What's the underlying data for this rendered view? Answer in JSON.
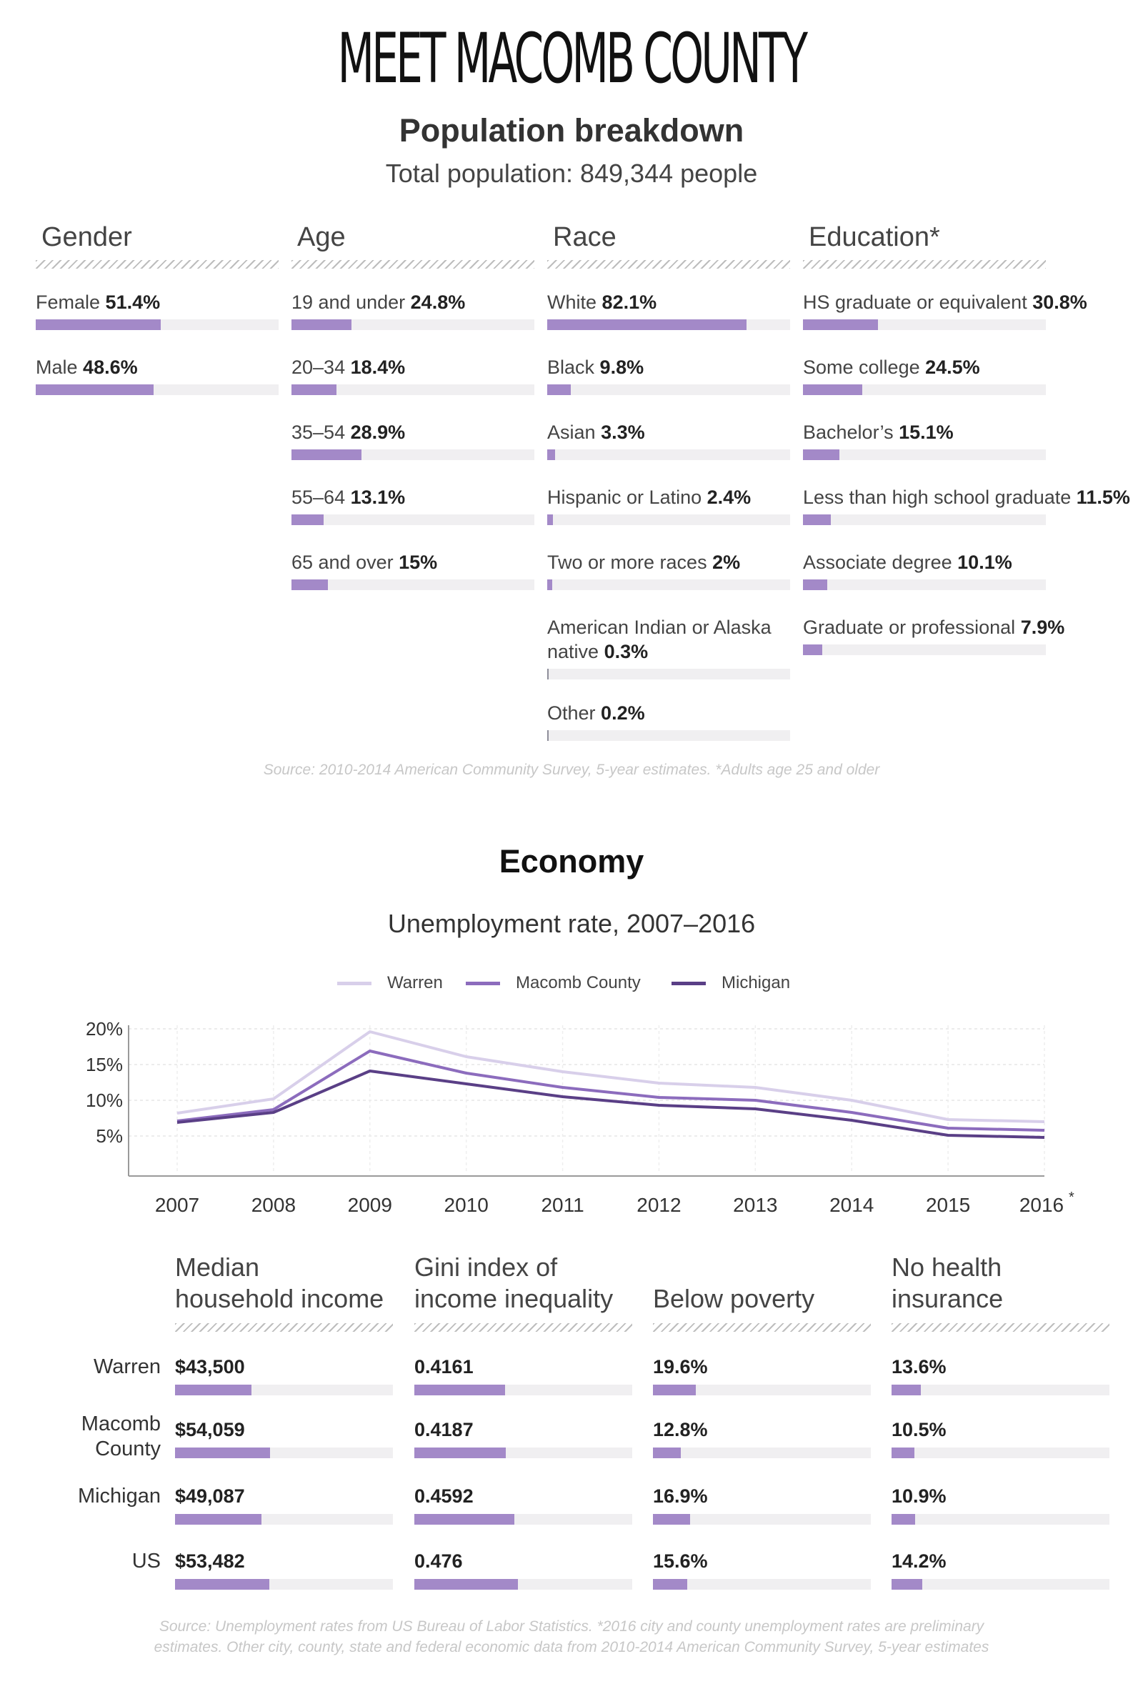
{
  "title": "MEET MACOMB COUNTY",
  "population": {
    "heading": "Population breakdown",
    "subheading": "Total population: 849,344 people",
    "columns": [
      {
        "header": "Gender",
        "items": [
          {
            "label": "Female",
            "value": "51.4%",
            "pct": 51.4
          },
          {
            "label": "Male",
            "value": "48.6%",
            "pct": 48.6
          }
        ]
      },
      {
        "header": "Age",
        "items": [
          {
            "label": "19 and under",
            "value": "24.8%",
            "pct": 24.8
          },
          {
            "label": "20–34",
            "value": "18.4%",
            "pct": 18.4
          },
          {
            "label": "35–54",
            "value": "28.9%",
            "pct": 28.9
          },
          {
            "label": "55–64",
            "value": "13.1%",
            "pct": 13.1
          },
          {
            "label": "65 and over",
            "value": "15%",
            "pct": 15
          }
        ]
      },
      {
        "header": "Race",
        "items": [
          {
            "label": "White",
            "value": "82.1%",
            "pct": 82.1
          },
          {
            "label": "Black",
            "value": "9.8%",
            "pct": 9.8
          },
          {
            "label": "Asian",
            "value": "3.3%",
            "pct": 3.3
          },
          {
            "label": "Hispanic or Latino",
            "value": "2.4%",
            "pct": 2.4
          },
          {
            "label": "Two or more races",
            "value": "2%",
            "pct": 2
          },
          {
            "label": "American Indian or Alaska native",
            "value": "0.3%",
            "pct": 0.3
          },
          {
            "label": "Other",
            "value": "0.2%",
            "pct": 0.2
          }
        ]
      },
      {
        "header": "Education*",
        "items": [
          {
            "label": "HS graduate or equivalent",
            "value": "30.8%",
            "pct": 30.8
          },
          {
            "label": "Some college",
            "value": "24.5%",
            "pct": 24.5
          },
          {
            "label": "Bachelor’s",
            "value": "15.1%",
            "pct": 15.1
          },
          {
            "label": "Less than high school graduate",
            "value": "11.5%",
            "pct": 11.5
          },
          {
            "label": "Associate degree",
            "value": "10.1%",
            "pct": 10.1
          },
          {
            "label": "Graduate or professional",
            "value": "7.9%",
            "pct": 7.9
          }
        ]
      }
    ],
    "source": "Source: 2010-2014 American Community Survey, 5-year estimates. *Adults age 25 and older"
  },
  "economy": {
    "heading": "Economy",
    "chart_title": "Unemployment rate, 2007–2016",
    "table_headers": [
      [
        "Median",
        "household income"
      ],
      [
        "Gini index of",
        "income inequality"
      ],
      [
        "Below poverty"
      ],
      [
        "No health",
        "insurance"
      ]
    ],
    "rows": [
      {
        "label": [
          "Warren"
        ],
        "values": [
          "$43,500",
          "0.4161",
          "19.6%",
          "13.6%"
        ],
        "bar_values": [
          43500,
          0.4161,
          19.6,
          13.6
        ]
      },
      {
        "label": [
          "Macomb",
          "County"
        ],
        "values": [
          "$54,059",
          "0.4187",
          "12.8%",
          "10.5%"
        ],
        "bar_values": [
          54059,
          0.4187,
          12.8,
          10.5
        ]
      },
      {
        "label": [
          "Michigan"
        ],
        "values": [
          "$49,087",
          "0.4592",
          "16.9%",
          "10.9%"
        ],
        "bar_values": [
          49087,
          0.4592,
          16.9,
          10.9
        ]
      },
      {
        "label": [
          "US"
        ],
        "values": [
          "$53,482",
          "0.476",
          "15.6%",
          "14.2%"
        ],
        "bar_values": [
          53482,
          0.476,
          15.6,
          14.2
        ]
      }
    ],
    "bar_scale_max": [
      124000,
      1,
      100,
      100
    ],
    "source_lines": [
      "Source: Unemployment rates from US Bureau of Labor Statistics. *2016 city and county unemployment rates are preliminary",
      "estimates. Other city, county, state and federal economic data from 2010-2014 American Community Survey, 5-year estimates"
    ]
  },
  "colors": {
    "bar": "#a389c8",
    "track": "#f0eff1",
    "warren": "#d8cfea",
    "macomb": "#8c6cbd",
    "michigan": "#5a3f86"
  },
  "chart_data": {
    "type": "line",
    "title": "Unemployment rate, 2007–2016",
    "x": [
      "2007",
      "2008",
      "2009",
      "2010",
      "2011",
      "2012",
      "2013",
      "2014",
      "2015",
      "2016*"
    ],
    "series": [
      {
        "name": "Warren",
        "values": [
          8.2,
          10.2,
          19.6,
          16.1,
          14.0,
          12.4,
          11.8,
          10.0,
          7.3,
          7.0
        ]
      },
      {
        "name": "Macomb County",
        "values": [
          7.1,
          8.7,
          16.9,
          13.8,
          11.8,
          10.4,
          10.0,
          8.3,
          6.1,
          5.8
        ]
      },
      {
        "name": "Michigan",
        "values": [
          6.9,
          8.3,
          14.1,
          12.3,
          10.5,
          9.3,
          8.8,
          7.2,
          5.1,
          4.8
        ]
      }
    ],
    "yticks": [
      "20%",
      "15%",
      "10%",
      "5%"
    ],
    "ytick_values": [
      20,
      15,
      10,
      5
    ],
    "ylim": [
      0,
      20
    ],
    "grid": true,
    "legend": "top-center"
  }
}
